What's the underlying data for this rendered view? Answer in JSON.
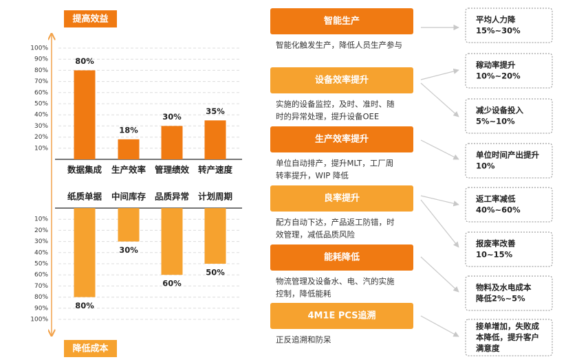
{
  "header": {
    "top_label": "提高效益",
    "bottom_label": "降低成本"
  },
  "chart_data": [
    {
      "type": "bar",
      "categories": [
        "数据集成",
        "生产效率",
        "管理绩效",
        "转产速度"
      ],
      "values": [
        80,
        18,
        30,
        35
      ],
      "value_labels": [
        "80%",
        "18%",
        "30%",
        "35%"
      ],
      "color": "#f07a12",
      "ylim": [
        0,
        100
      ],
      "yticks": [
        {
          "value": 10,
          "label": "10%"
        },
        {
          "value": 20,
          "label": "20%"
        },
        {
          "value": 30,
          "label": "30%"
        },
        {
          "value": 40,
          "label": "40%"
        },
        {
          "value": 50,
          "label": "50%"
        },
        {
          "value": 60,
          "label": "60%"
        },
        {
          "value": 70,
          "label": "70%"
        },
        {
          "value": 80,
          "label": "80%"
        },
        {
          "value": 90,
          "label": "90%"
        },
        {
          "value": 100,
          "label": "100%"
        }
      ],
      "grid": true
    },
    {
      "type": "bar",
      "categories": [
        "纸质单据",
        "中间库存",
        "品质异常",
        "计划周期"
      ],
      "values": [
        80,
        30,
        60,
        50
      ],
      "value_labels": [
        "80%",
        "30%",
        "60%",
        "50%"
      ],
      "color": "#f6a22f",
      "ylim": [
        0,
        100
      ],
      "yticks": [
        {
          "value": 10,
          "label": "10%"
        },
        {
          "value": 20,
          "label": "20%"
        },
        {
          "value": 30,
          "label": "30%"
        },
        {
          "value": 40,
          "label": "40%"
        },
        {
          "value": 50,
          "label": "50%"
        },
        {
          "value": 60,
          "label": "60%"
        },
        {
          "value": 70,
          "label": "70%"
        },
        {
          "value": 80,
          "label": "80%"
        },
        {
          "value": 90,
          "label": "90%"
        },
        {
          "value": 100,
          "label": "100%"
        }
      ],
      "grid": true
    }
  ],
  "initiatives": [
    {
      "title": "智能生产",
      "description": [
        "智能化触发生产，降低人员生产参与"
      ]
    },
    {
      "title": "设备效率提升",
      "description": [
        "实施的设备监控，及时、准时、随",
        "时的异常处理，提升设备OEE"
      ]
    },
    {
      "title": "生产效率提升",
      "description": [
        "单位自动排产，提升MLT，工厂周",
        "转率提升，WIP 降低"
      ]
    },
    {
      "title": "良率提升",
      "description": [
        "配方自动下达，产品返工防错，时",
        "效管理，减低品质风险"
      ]
    },
    {
      "title": "能耗降低",
      "description": [
        "物流管理及设备水、电、汽的实施",
        "控制，降低能耗"
      ]
    },
    {
      "title": "4M1E PCS追溯",
      "description": [
        "正反追溯和防呆"
      ]
    }
  ],
  "benefits": [
    {
      "lines": [
        "平均人力降",
        "15%~30%"
      ]
    },
    {
      "lines": [
        "稼动率提升",
        "10%~20%"
      ]
    },
    {
      "lines": [
        "减少设备投入",
        "5%~10%"
      ]
    },
    {
      "lines": [
        "单位时间产出提升",
        "10%"
      ]
    },
    {
      "lines": [
        "返工率减低",
        "40%~60%"
      ]
    },
    {
      "lines": [
        "报废率改善",
        "10~15%"
      ]
    },
    {
      "lines": [
        "物料及水电成本",
        "降低2%~5%"
      ]
    },
    {
      "lines": [
        "接单增加，失败成",
        "本降低，提升客户",
        "满意度"
      ]
    }
  ]
}
